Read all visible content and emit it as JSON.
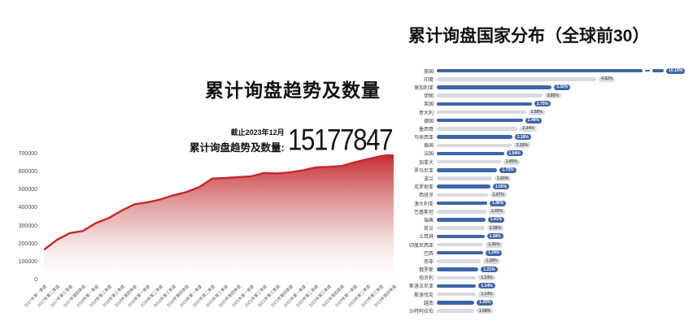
{
  "left_chart": {
    "title": "累计询盘趋势及数量",
    "stat_caption": "截止2023年12月",
    "stat_label": "累计询盘趋势及数量:",
    "stat_value": "15177847"
  },
  "right_chart": {
    "title": "累计询盘国家分布（全球前30）"
  },
  "colors": {
    "area_line": "#c5282c",
    "area_fill_top": "#c5282c",
    "area_fill_bottom": "#ffffff",
    "bar_blue": "#4065a8",
    "bar_gray": "#d9dbe0",
    "pill_text_on_blue": "#ffffff",
    "pill_text_on_gray": "#5a5a5a",
    "title_text": "#111111"
  },
  "chart_data": [
    {
      "type": "area",
      "title": "累计询盘趋势及数量",
      "subtitle_caption": "截止2023年12月",
      "total_value": 15177847,
      "x": [
        "2017年第一季度",
        "2017年第二季度",
        "2017年第三季度",
        "2017年第四季度",
        "2018年第一季度",
        "2018年第二季度",
        "2018年第三季度",
        "2018年第四季度",
        "2019年第一季度",
        "2019年第二季度",
        "2019年第三季度",
        "2019年第四季度",
        "2020年第一季度",
        "2020年第二季度",
        "2020年第三季度",
        "2020年第四季度",
        "2021年第一季度",
        "2021年第二季度",
        "2021年第三季度",
        "2021年第四季度",
        "2022年第一季度",
        "2022年第二季度",
        "2022年第三季度",
        "2022年第四季度",
        "2023年第一季度",
        "2023年第二季度",
        "2023年第三季度",
        "2023年第四季度"
      ],
      "values": [
        170000,
        225000,
        263000,
        274000,
        318000,
        346000,
        388000,
        423000,
        434000,
        450000,
        473000,
        491000,
        519000,
        566000,
        569000,
        574000,
        578000,
        597000,
        594000,
        600000,
        612000,
        628000,
        631000,
        636000,
        656000,
        674000,
        690000,
        700000
      ],
      "ylim": [
        0,
        700000
      ],
      "y_ticks": [
        0,
        100000,
        200000,
        300000,
        400000,
        500000,
        600000,
        700000
      ],
      "grid": false,
      "legend": "none",
      "fill": "vertical red-to-white gradient"
    },
    {
      "type": "bar",
      "orientation": "horizontal",
      "title": "累计询盘国家分布（全球前30）",
      "sorted": "descending",
      "unit": "%",
      "first_bar_axis_break": true,
      "bar_color_pattern": "alternating blue/gray starting blue",
      "categories": [
        "美国",
        "印度",
        "保加利亚",
        "伊朗",
        "英国",
        "意大利",
        "德国",
        "墨西哥",
        "马来西亚",
        "泰国",
        "法国",
        "加拿大",
        "罗马尼亚",
        "波兰",
        "克罗地亚",
        "西班牙",
        "澳大利亚",
        "巴基斯坦",
        "瑞典",
        "荷兰",
        "土耳其",
        "印度尼西亚",
        "巴西",
        "南非",
        "俄罗斯",
        "匈牙利",
        "斯洛文尼亚",
        "斯洛伐克",
        "越南",
        "沙特阿拉伯"
      ],
      "values": [
        10.19,
        4.62,
        3.32,
        3.05,
        2.75,
        2.58,
        2.49,
        2.34,
        2.18,
        2.16,
        1.94,
        1.85,
        1.75,
        1.6,
        1.55,
        1.47,
        1.46,
        1.43,
        1.41,
        1.38,
        1.38,
        1.35,
        1.34,
        1.28,
        1.21,
        1.14,
        1.14,
        1.14,
        1.09,
        1.08
      ],
      "labels": [
        "10.19%",
        "4.62%",
        "3.32%",
        "3.05%",
        "2.75%",
        "2.58%",
        "2.49%",
        "2.34%",
        "2.18%",
        "2.16%",
        "1.94%",
        "1.85%",
        "1.75%",
        "1.60%",
        "1.55%",
        "1.47%",
        "1.46%",
        "1.43%",
        "1.41%",
        "1.38%",
        "1.38%",
        "1.35%",
        "1.34%",
        "1.28%",
        "1.21%",
        "1.14%",
        "1.14%",
        "1.14%",
        "1.09%",
        "1.08%"
      ],
      "legend": "none"
    }
  ]
}
